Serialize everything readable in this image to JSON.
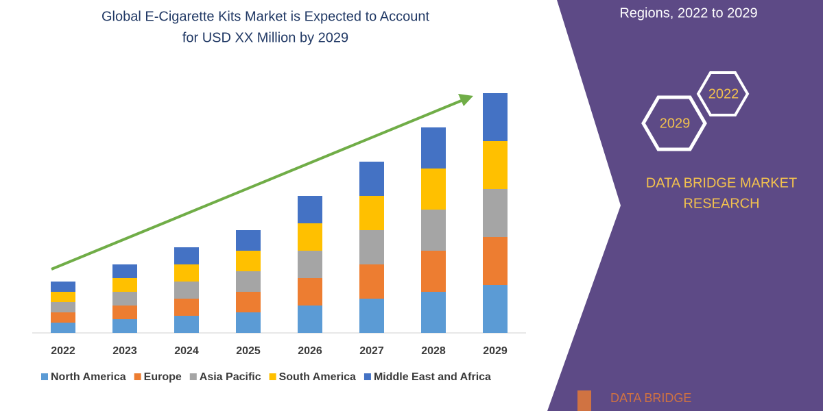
{
  "chart_data": {
    "type": "stacked-bar",
    "title": [
      "Global E-Cigarette Kits Market is Expected to Account",
      "for USD XX Million by 2029"
    ],
    "categories": [
      "2022",
      "2023",
      "2024",
      "2025",
      "2026",
      "2027",
      "2028",
      "2029"
    ],
    "series": [
      {
        "name": "North America",
        "color": "#5b9bd5",
        "values": [
          15,
          20,
          25,
          30,
          40,
          50,
          60,
          70
        ]
      },
      {
        "name": "Europe",
        "color": "#ed7d31",
        "values": [
          15,
          20,
          25,
          30,
          40,
          50,
          60,
          70
        ]
      },
      {
        "name": "Asia Pacific",
        "color": "#a5a5a5",
        "values": [
          15,
          20,
          25,
          30,
          40,
          50,
          60,
          70
        ]
      },
      {
        "name": "South America",
        "color": "#ffc000",
        "values": [
          15,
          20,
          25,
          30,
          40,
          50,
          60,
          70
        ]
      },
      {
        "name": "Middle East and Africa",
        "color": "#4472c4",
        "values": [
          15,
          20,
          25,
          30,
          40,
          50,
          60,
          70
        ]
      }
    ]
  },
  "panel": {
    "subtitle": "Regions, 2022 to 2029",
    "hexagons": [
      "2022",
      "2029"
    ],
    "brand": [
      "DATA BRIDGE MARKET",
      "RESEARCH"
    ],
    "logo": "DATA BRIDGE"
  }
}
